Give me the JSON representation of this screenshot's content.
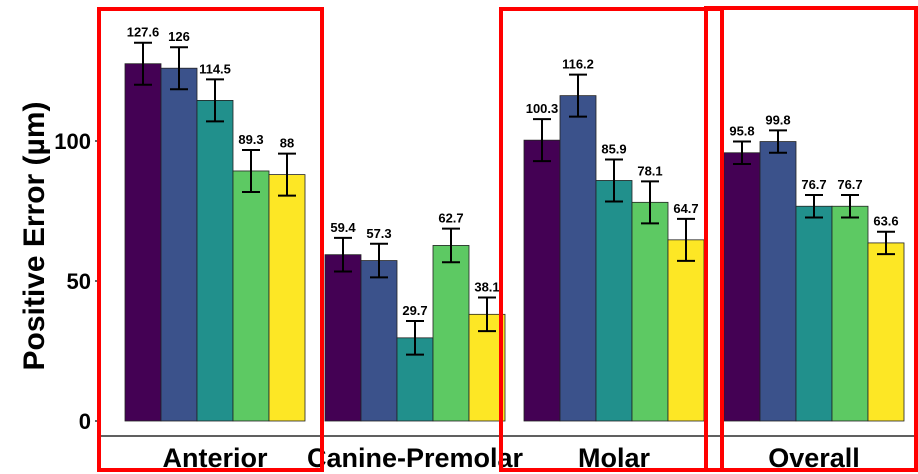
{
  "chart_data": {
    "type": "bar",
    "ylabel": "Positive Error (µm)",
    "xlabel": "",
    "ylim": [
      0,
      147
    ],
    "yticks": [
      0,
      50,
      100
    ],
    "categories": [
      "Anterior",
      "Canine-Premolar",
      "Molar",
      "Overall"
    ],
    "colors": [
      "#440154",
      "#3b528b",
      "#21908c",
      "#5dc963",
      "#fde725"
    ],
    "series": [
      {
        "values": [
          127.6,
          59.4,
          100.3,
          95.8
        ],
        "errors": [
          7.5,
          6.0,
          7.5,
          4.0
        ]
      },
      {
        "values": [
          126,
          57.3,
          116.2,
          99.8
        ],
        "errors": [
          7.5,
          6.0,
          7.5,
          4.0
        ]
      },
      {
        "values": [
          114.5,
          29.7,
          85.9,
          76.7
        ],
        "errors": [
          7.5,
          6.0,
          7.5,
          4.0
        ]
      },
      {
        "values": [
          89.3,
          62.7,
          78.1,
          76.7
        ],
        "errors": [
          7.5,
          6.0,
          7.5,
          4.0
        ]
      },
      {
        "values": [
          88,
          38.1,
          64.7,
          63.6
        ],
        "errors": [
          7.5,
          6.0,
          7.5,
          4.0
        ]
      }
    ],
    "data_labels": [
      [
        "127.6",
        "59.4",
        "100.3",
        "95.8"
      ],
      [
        "126",
        "57.3",
        "116.2",
        "99.8"
      ],
      [
        "114.5",
        "29.7",
        "85.9",
        "76.7"
      ],
      [
        "89.3",
        "62.7",
        "78.1",
        "76.7"
      ],
      [
        "88",
        "38.1",
        "64.7",
        "63.6"
      ]
    ],
    "grid": false,
    "legend": "none",
    "highlight_color": "#ff0000",
    "highlighted_groups": [
      "Anterior",
      "Molar",
      "Overall"
    ]
  }
}
